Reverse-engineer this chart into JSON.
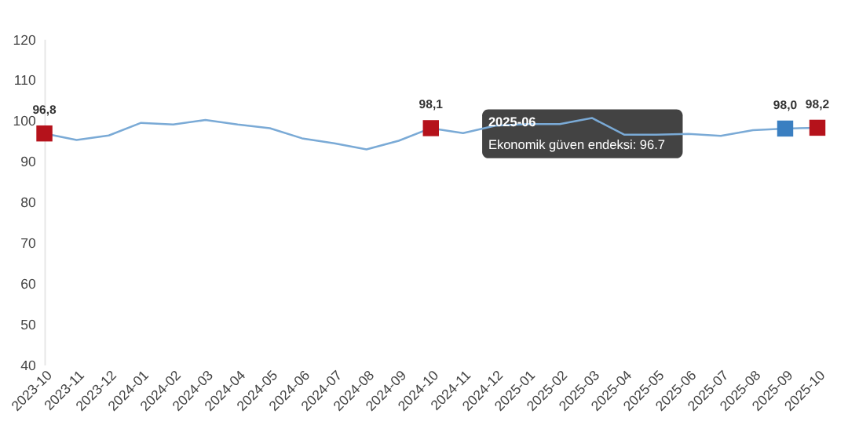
{
  "chart_data": {
    "type": "line",
    "categories": [
      "2023-10",
      "2023-11",
      "2023-12",
      "2024-01",
      "2024-02",
      "2024-03",
      "2024-04",
      "2024-05",
      "2024-06",
      "2024-07",
      "2024-08",
      "2024-09",
      "2024-10",
      "2024-11",
      "2024-12",
      "2025-01",
      "2025-02",
      "2025-03",
      "2025-04",
      "2025-05",
      "2025-06",
      "2025-07",
      "2025-08",
      "2025-09",
      "2025-10"
    ],
    "series": [
      {
        "color": "#7aaad6",
        "marker": "none",
        "line_style": "solid",
        "values": [
          96.8,
          95.2,
          96.3,
          99.4,
          99.0,
          100.1,
          99.0,
          98.1,
          95.6,
          94.4,
          92.9,
          95.0,
          98.1,
          96.9,
          98.7,
          99.1,
          99.1,
          100.6,
          96.5,
          96.5,
          96.7,
          96.2,
          97.6,
          98.0,
          98.2
        ]
      },
      {
        "type": "scatter",
        "marker": "square",
        "values": [
          96.8,
          null,
          null,
          null,
          null,
          null,
          null,
          null,
          null,
          null,
          null,
          null,
          98.1,
          null,
          null,
          null,
          null,
          null,
          null,
          null,
          null,
          null,
          null,
          98.0,
          98.2
        ],
        "colors": [
          "#b5121b",
          null,
          null,
          null,
          null,
          null,
          null,
          null,
          null,
          null,
          null,
          null,
          "#b5121b",
          null,
          null,
          null,
          null,
          null,
          null,
          null,
          null,
          null,
          null,
          "#3a7fc1",
          "#b5121b"
        ],
        "value_labels": [
          "96,8",
          null,
          null,
          null,
          null,
          null,
          null,
          null,
          null,
          null,
          null,
          null,
          "98,1",
          null,
          null,
          null,
          null,
          null,
          null,
          null,
          null,
          null,
          null,
          "98,0",
          "98,2"
        ]
      }
    ],
    "annotations": [
      "2025-06",
      "Ekonomik güven endeksi: 96.7"
    ],
    "ylim": [
      40,
      120
    ],
    "yticks": [
      40,
      50,
      60,
      70,
      80,
      90,
      100,
      110,
      120
    ],
    "grid": false
  }
}
